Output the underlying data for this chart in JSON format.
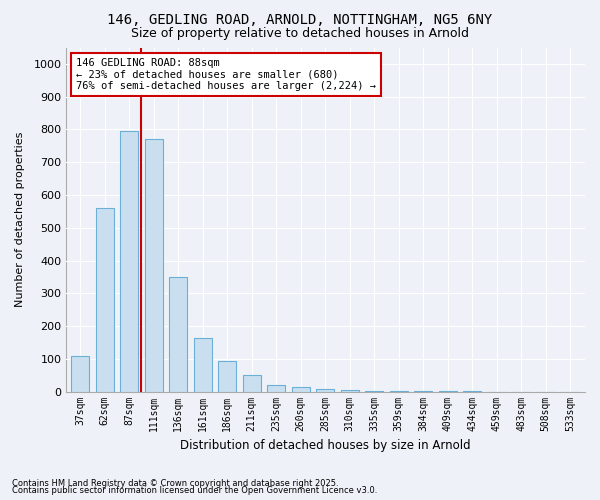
{
  "title_line1": "146, GEDLING ROAD, ARNOLD, NOTTINGHAM, NG5 6NY",
  "title_line2": "Size of property relative to detached houses in Arnold",
  "xlabel": "Distribution of detached houses by size in Arnold",
  "ylabel": "Number of detached properties",
  "categories": [
    "37sqm",
    "62sqm",
    "87sqm",
    "111sqm",
    "136sqm",
    "161sqm",
    "186sqm",
    "211sqm",
    "235sqm",
    "260sqm",
    "285sqm",
    "310sqm",
    "335sqm",
    "359sqm",
    "384sqm",
    "409sqm",
    "434sqm",
    "459sqm",
    "483sqm",
    "508sqm",
    "533sqm"
  ],
  "values": [
    110,
    560,
    795,
    770,
    350,
    165,
    95,
    50,
    20,
    15,
    8,
    5,
    3,
    2,
    1,
    1,
    1,
    0,
    0,
    0,
    0
  ],
  "bar_color": "#c9dff0",
  "bar_edge_color": "#6baed6",
  "background_color": "#eef2f8",
  "grid_color": "#ffffff",
  "vline_position": 2.5,
  "vline_color": "#cc0000",
  "annotation_text": "146 GEDLING ROAD: 88sqm\n← 23% of detached houses are smaller (680)\n76% of semi-detached houses are larger (2,224) →",
  "annotation_box_facecolor": "#ffffff",
  "annotation_box_edgecolor": "#cc0000",
  "ylim": [
    0,
    1050
  ],
  "yticks": [
    0,
    100,
    200,
    300,
    400,
    500,
    600,
    700,
    800,
    900,
    1000
  ],
  "footnote1": "Contains HM Land Registry data © Crown copyright and database right 2025.",
  "footnote2": "Contains public sector information licensed under the Open Government Licence v3.0."
}
